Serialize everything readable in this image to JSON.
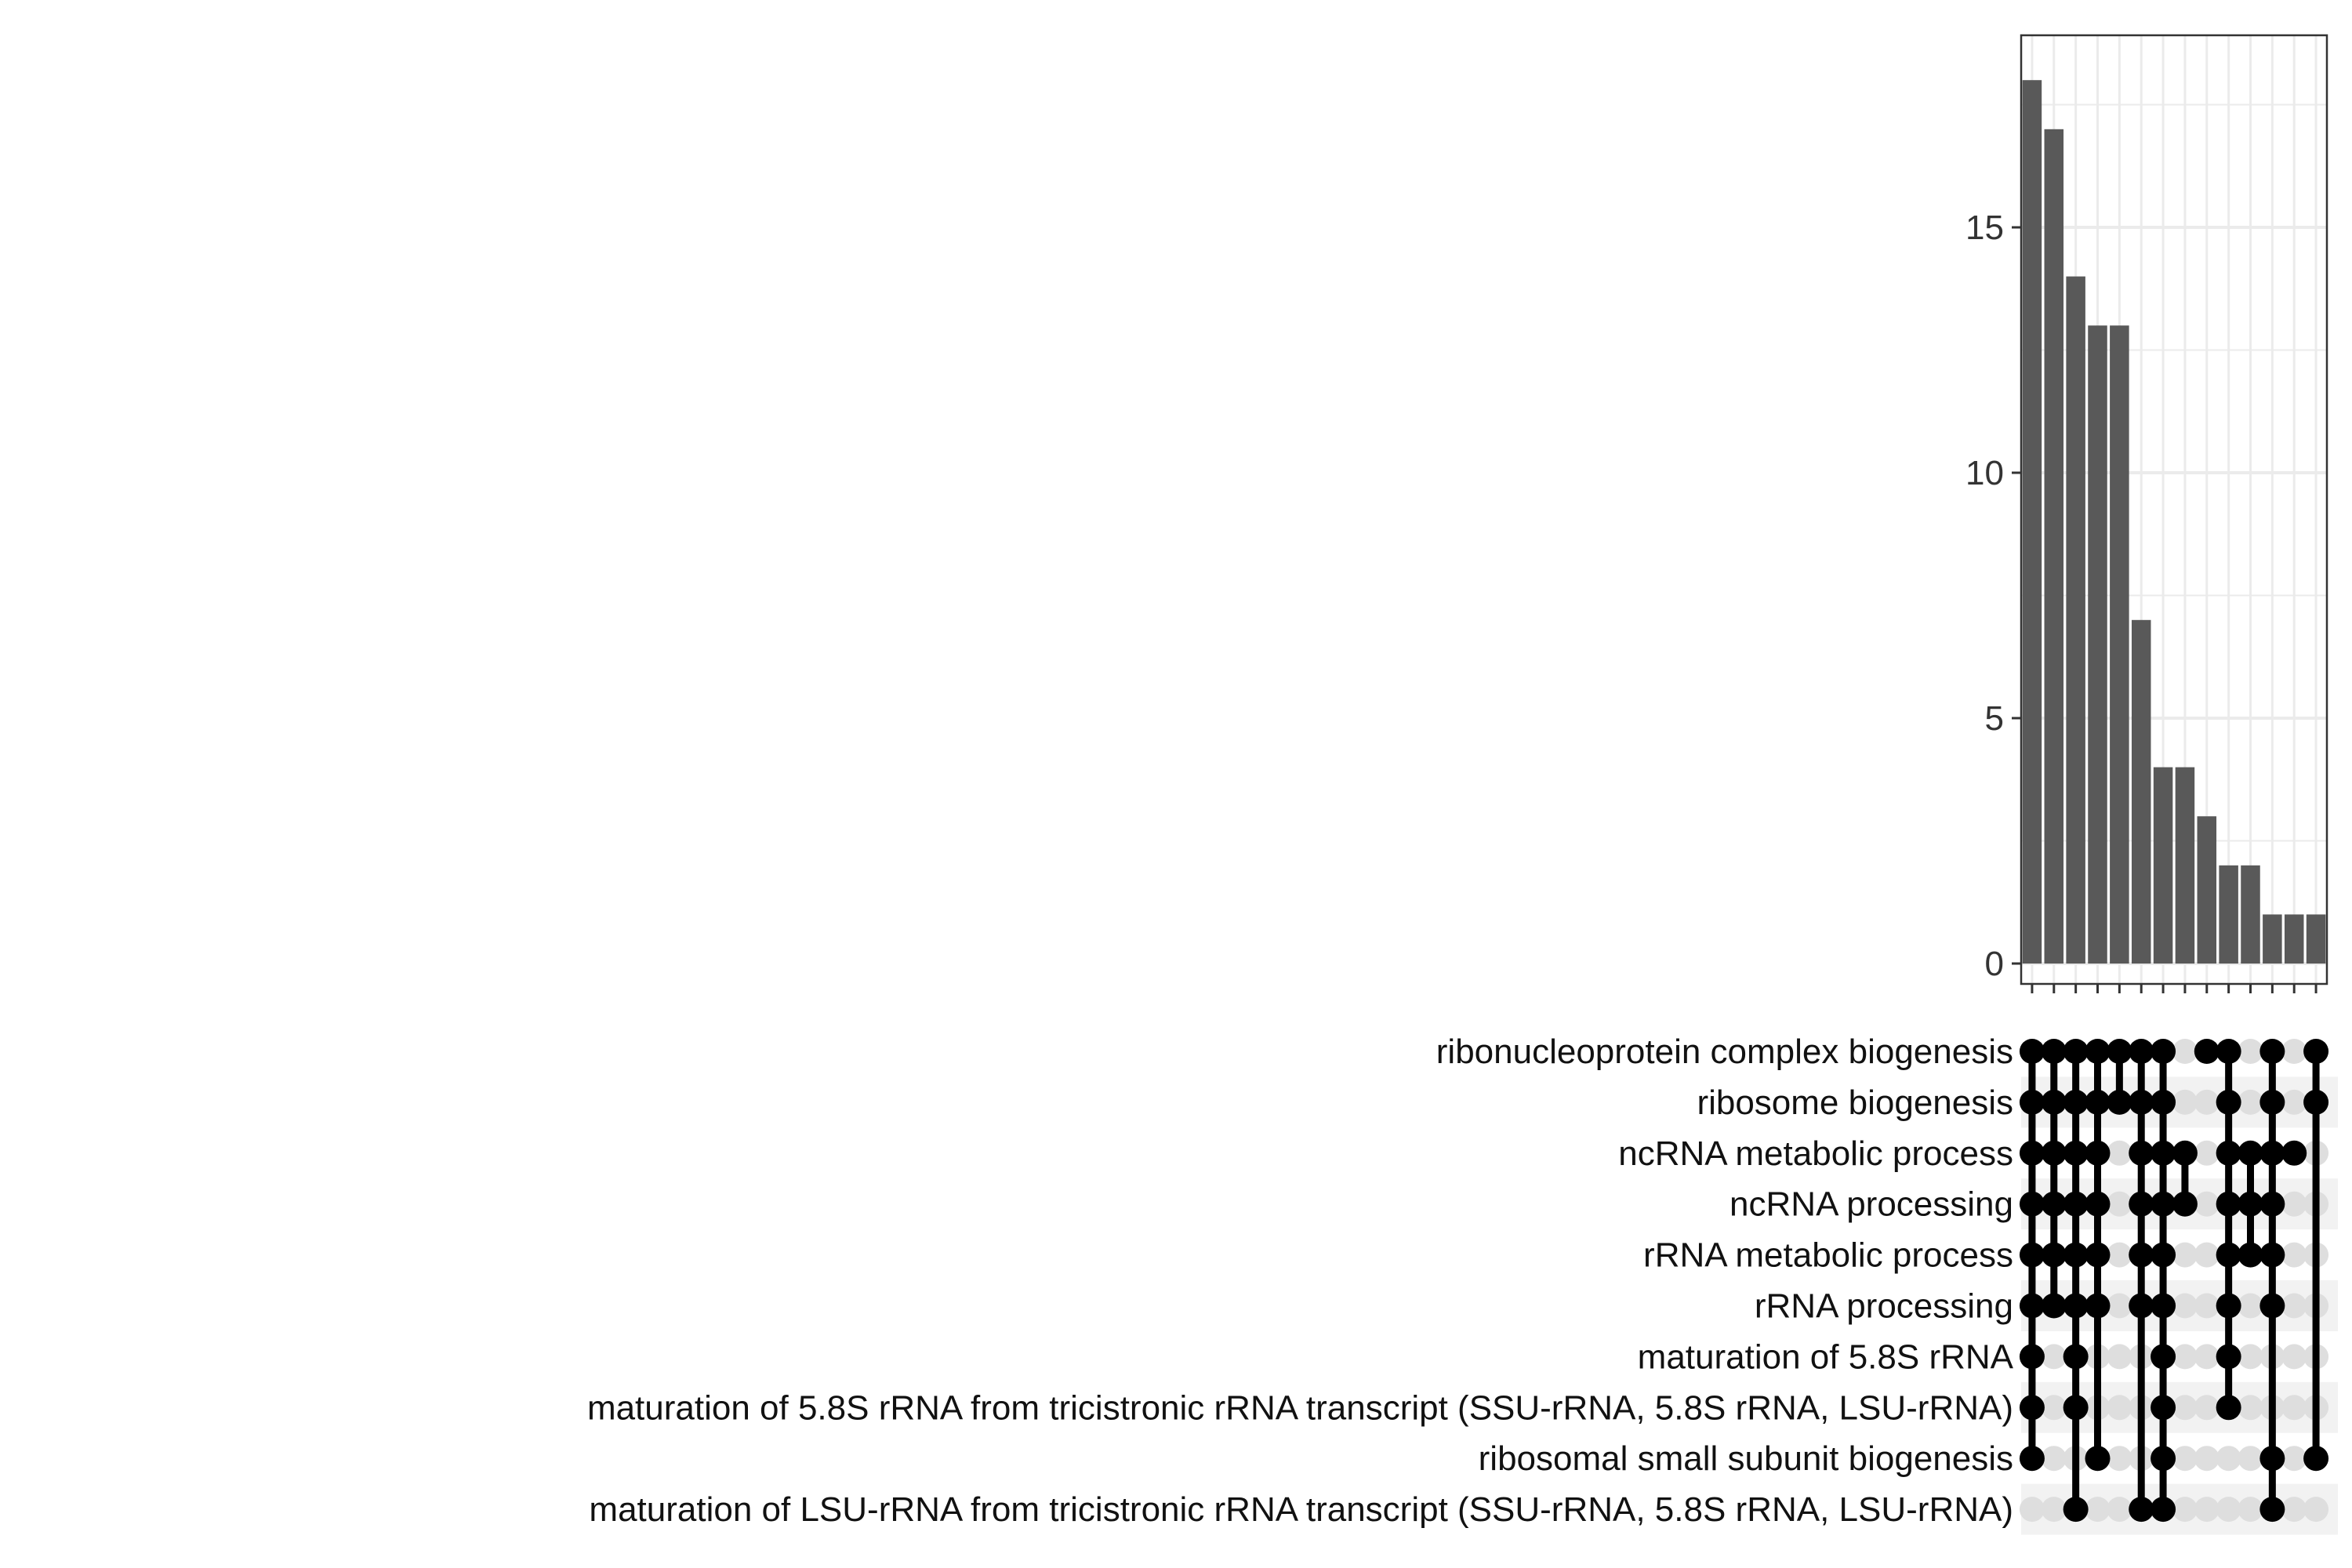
{
  "chart_data": {
    "type": "bar",
    "subtype": "upset",
    "title": "",
    "xlabel": "",
    "ylabel": "",
    "ylim": [
      0,
      18.9
    ],
    "yticks": [
      0,
      5,
      10,
      15
    ],
    "grid": true,
    "sets": [
      "ribonucleoprotein complex biogenesis",
      "ribosome biogenesis",
      "ncRNA metabolic process",
      "ncRNA processing",
      "rRNA metabolic process",
      "rRNA processing",
      "maturation of 5.8S rRNA",
      "maturation of 5.8S rRNA from tricistronic rRNA transcript (SSU-rRNA, 5.8S rRNA, LSU-rRNA)",
      "ribosomal small subunit biogenesis",
      "maturation of LSU-rRNA from tricistronic rRNA transcript (SSU-rRNA, 5.8S rRNA, LSU-rRNA)"
    ],
    "values": [
      18,
      17,
      14,
      13,
      13,
      7,
      4,
      4,
      3,
      2,
      2,
      1,
      1,
      1
    ],
    "intersections": [
      [
        0,
        1,
        2,
        3,
        4,
        5,
        6,
        7,
        8
      ],
      [
        0,
        1,
        2,
        3,
        4,
        5
      ],
      [
        0,
        1,
        2,
        3,
        4,
        5,
        6,
        7,
        9
      ],
      [
        0,
        1,
        2,
        3,
        4,
        5,
        8
      ],
      [
        0,
        1
      ],
      [
        0,
        1,
        2,
        3,
        4,
        5,
        9
      ],
      [
        0,
        1,
        2,
        3,
        4,
        5,
        6,
        7,
        8,
        9
      ],
      [
        2,
        3
      ],
      [
        0
      ],
      [
        0,
        1,
        2,
        3,
        4,
        5,
        6,
        7
      ],
      [
        2,
        3,
        4
      ],
      [
        0,
        1,
        2,
        3,
        4,
        5,
        8,
        9
      ],
      [
        2
      ],
      [
        0,
        1,
        8
      ]
    ],
    "colors": {
      "bar": "#595959",
      "dot_on": "#000000",
      "dot_off": "#dedede",
      "stripe": "#f2f2f2",
      "grid": "#ebebeb",
      "frame": "#333333"
    }
  }
}
